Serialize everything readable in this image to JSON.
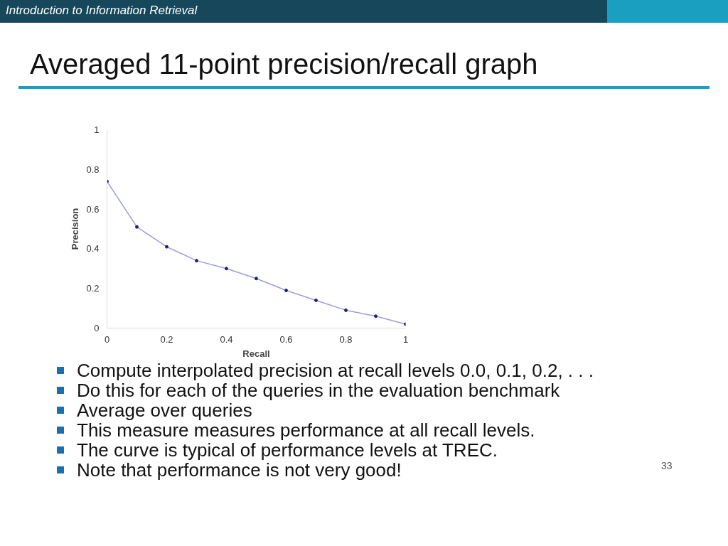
{
  "chart_data": {
    "type": "line",
    "title": "Averaged 11-point precision/recall graph",
    "xlabel": "Recall",
    "ylabel": "Precision",
    "x": [
      0,
      0.1,
      0.2,
      0.3,
      0.4,
      0.5,
      0.6,
      0.7,
      0.8,
      0.9,
      1
    ],
    "series": [
      {
        "color": "#9c9ce0",
        "values": [
          0.74,
          0.51,
          0.41,
          0.34,
          0.3,
          0.25,
          0.19,
          0.14,
          0.09,
          0.06,
          0.02
        ]
      }
    ],
    "xlim": [
      0,
      1
    ],
    "ylim": [
      0,
      1
    ],
    "xticks": [
      0,
      0.2,
      0.4,
      0.6,
      0.8,
      1
    ],
    "yticks": [
      0,
      0.2,
      0.4,
      0.6,
      0.8,
      1
    ],
    "grid": false,
    "marker": "circle",
    "line_style": "solid",
    "annotations": [
      "Introduction to Information Retrieval",
      "Compute interpolated precision at recall levels 0.0, 0.1, 0.2, . . .",
      "Do this for each of the queries in the evaluation benchmark",
      "Average over queries",
      "This measure measures performance at all recall levels.",
      "The curve is typical of performance levels at TREC.",
      "Note that performance is not very good!",
      "33"
    ]
  }
}
